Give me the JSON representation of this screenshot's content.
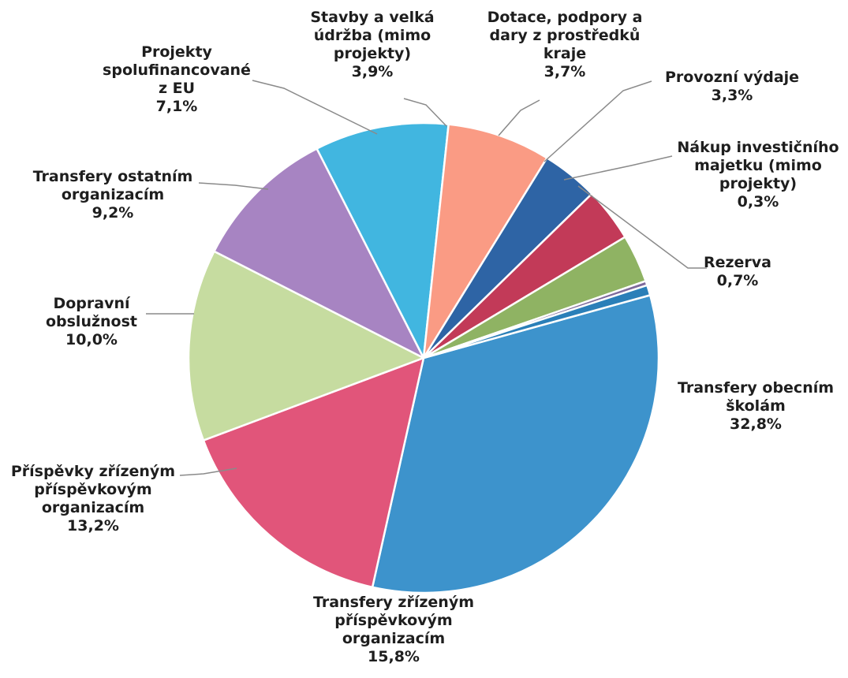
{
  "chart_data": {
    "type": "pie",
    "title": "",
    "slices": [
      {
        "label": [
          "Transfery obecním",
          "školám"
        ],
        "value_label": "32,8%",
        "value": 32.8,
        "color": "#3d93cc"
      },
      {
        "label": [
          "Transfery zřízeným",
          "příspěvkovým",
          "organizacím"
        ],
        "value_label": "15,8%",
        "value": 15.8,
        "color": "#e1557a"
      },
      {
        "label": [
          "Příspěvky zřízeným",
          "příspěvkovým",
          "organizacím"
        ],
        "value_label": "13,2%",
        "value": 13.2,
        "color": "#c6dca0"
      },
      {
        "label": [
          "Dopravní",
          "obslužnost"
        ],
        "value_label": "10,0%",
        "value": 10.0,
        "color": "#a784c2"
      },
      {
        "label": [
          "Transfery ostatním",
          "organizacím"
        ],
        "value_label": "9,2%",
        "value": 9.2,
        "color": "#41b6e0"
      },
      {
        "label": [
          "Projekty",
          "spolufinancované",
          "z EU"
        ],
        "value_label": "7,1%",
        "value": 7.1,
        "color": "#fa9b84"
      },
      {
        "label": [
          "Stavby a velká",
          "údržba (mimo",
          "projekty)"
        ],
        "value_label": "3,9%",
        "value": 3.9,
        "color": "#2e64a5"
      },
      {
        "label": [
          "Dotace, podpory a",
          "dary z prostředků",
          "kraje"
        ],
        "value_label": "3,7%",
        "value": 3.7,
        "color": "#c23a58"
      },
      {
        "label": [
          "Provozní výdaje"
        ],
        "value_label": "3,3%",
        "value": 3.3,
        "color": "#8fb363"
      },
      {
        "label": [
          "Nákup investičního",
          "majetku (mimo",
          "projekty)"
        ],
        "value_label": "0,3%",
        "value": 0.3,
        "color": "#7e6a9c"
      },
      {
        "label": [
          "Rezerva"
        ],
        "value_label": "0,7%",
        "value": 0.7,
        "color": "#2a7fb8"
      }
    ]
  }
}
